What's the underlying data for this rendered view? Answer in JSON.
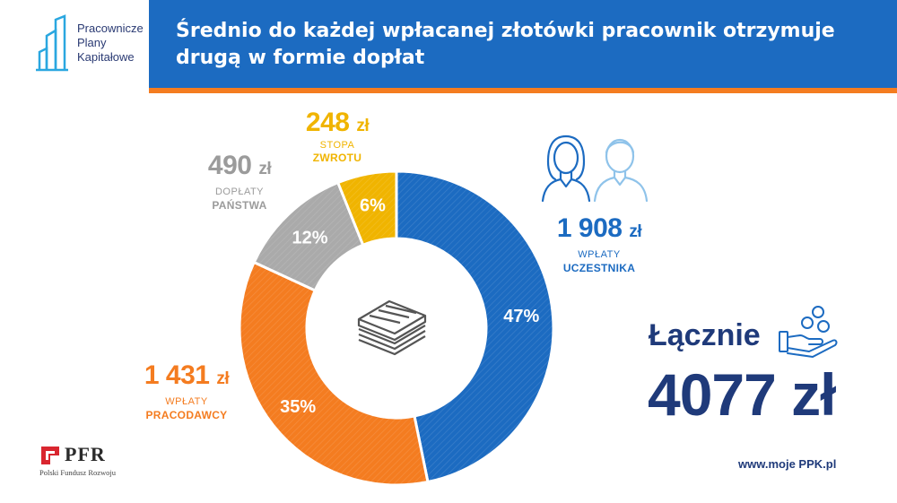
{
  "logo": {
    "line1": "Pracownicze",
    "line2": "Plany",
    "line3": "Kapitałowe"
  },
  "header": {
    "line1": "Średnio do każdej wpłacanej złotówki pracownik otrzymuje",
    "line2": "drugą w formie dopłat"
  },
  "labels": {
    "participant": {
      "amount": "1 908",
      "unit": "zł",
      "sub1": "WPŁATY",
      "sub2": "UCZESTNIKA"
    },
    "employer": {
      "amount": "1 431",
      "unit": "zł",
      "sub1": "WPŁATY",
      "sub2": "PRACODAWCY"
    },
    "state": {
      "amount": "490",
      "unit": "zł",
      "sub1": "DOPŁATY",
      "sub2": "PAŃSTWA"
    },
    "return": {
      "amount": "248",
      "unit": "zł",
      "sub1": "STOPA",
      "sub2": "ZWROTU"
    }
  },
  "total": {
    "label": "Łącznie",
    "value": "4077 zł"
  },
  "website": "www.moje PPK.pl",
  "pfr": {
    "name": "PFR",
    "subtitle": "Polski Fundusz Rozwoju"
  },
  "colors": {
    "participant": "#1c6bc1",
    "employer": "#f47c20",
    "state": "#aaaaaa",
    "return": "#f0b400",
    "header": "#1c6bc1",
    "accent_line": "#f47c20",
    "total": "#1f3a7a"
  },
  "icons": [
    "people-icon",
    "hand-coins-icon",
    "money-stack-icon",
    "ppk-logo-icon",
    "pfr-logo-icon"
  ],
  "chart_data": {
    "type": "pie",
    "categories": [
      "WPŁATY UCZESTNIKA",
      "WPŁATY PRACODAWCY",
      "DOPŁATY PAŃSTWA",
      "STOPA ZWROTU"
    ],
    "values": [
      1908,
      1431,
      490,
      248
    ],
    "percent_labels": [
      "47%",
      "35%",
      "12%",
      "6%"
    ],
    "unit": "zł",
    "total": 4077
  }
}
